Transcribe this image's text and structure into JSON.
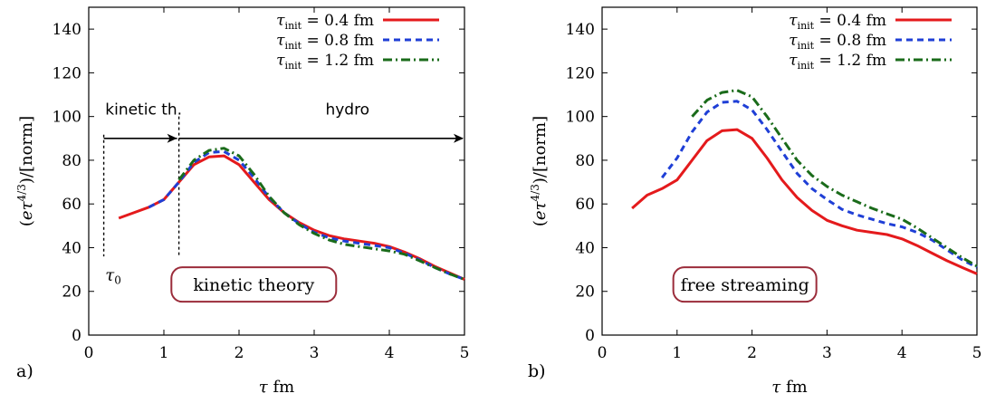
{
  "chart_data": [
    {
      "type": "line",
      "panel_label": "a)",
      "xlabel": "τ fm",
      "ylabel": "(eτ^{4/3})/[norm]",
      "xlim": [
        0,
        5
      ],
      "ylim": [
        0,
        150
      ],
      "x_ticks": [
        "0",
        "1",
        "2",
        "3",
        "4",
        "5"
      ],
      "y_ticks": [
        "0",
        "20",
        "40",
        "60",
        "80",
        "100",
        "120",
        "140"
      ],
      "legend_position": "top-right",
      "series": [
        {
          "name": "τinit = 0.4 fm",
          "color": "#e41a1c",
          "dash": "solid",
          "x": [
            0.4,
            0.6,
            0.8,
            1.0,
            1.2,
            1.4,
            1.6,
            1.8,
            2.0,
            2.2,
            2.4,
            2.6,
            2.8,
            3.0,
            3.2,
            3.4,
            3.6,
            3.8,
            4.0,
            4.2,
            4.4,
            4.6,
            4.8,
            5.0
          ],
          "y": [
            53.5,
            56,
            58.5,
            62,
            70,
            78,
            81.5,
            82,
            78,
            70,
            62,
            56,
            51.5,
            48,
            45.5,
            44,
            43,
            42,
            40.5,
            38,
            35,
            31.5,
            28.5,
            25.5
          ]
        },
        {
          "name": "τinit = 0.8 fm",
          "color": "#1f3fd6",
          "dash": "dash",
          "x": [
            0.8,
            1.0,
            1.2,
            1.4,
            1.6,
            1.8,
            2.0,
            2.2,
            2.4,
            2.6,
            2.8,
            3.0,
            3.2,
            3.4,
            3.6,
            3.8,
            4.0,
            4.2,
            4.4,
            4.6,
            4.8,
            5.0
          ],
          "y": [
            58.5,
            62,
            70,
            79,
            83.5,
            84,
            80,
            72,
            63,
            56,
            51,
            47,
            44.5,
            43,
            42,
            41,
            40,
            37.5,
            34.5,
            31,
            28,
            25.5
          ]
        },
        {
          "name": "τinit = 1.2 fm",
          "color": "#1a6b1a",
          "dash": "dashdot",
          "x": [
            1.2,
            1.4,
            1.6,
            1.8,
            2.0,
            2.2,
            2.4,
            2.6,
            2.8,
            3.0,
            3.2,
            3.4,
            3.6,
            3.8,
            4.0,
            4.2,
            4.4,
            4.6,
            4.8,
            5.0
          ],
          "y": [
            71,
            80,
            84.5,
            85.5,
            82,
            73.5,
            63.5,
            56,
            50.5,
            46.5,
            43.5,
            41.5,
            40.5,
            39.5,
            38.5,
            37,
            34,
            31,
            28,
            25.5
          ]
        }
      ],
      "annotations": {
        "kinetic_label": "kinetic th.",
        "hydro_label": "hydro",
        "tau0_label": "τ0",
        "tau_init_label": "τinit = 1.2 fm",
        "box_label": "kinetic theory",
        "tau0_x": 0.2,
        "tau_init_x": 1.2,
        "arrow_y": 90
      }
    },
    {
      "type": "line",
      "panel_label": "b)",
      "xlabel": "τ fm",
      "ylabel": "(eτ^{4/3})/[norm]",
      "xlim": [
        0,
        5
      ],
      "ylim": [
        0,
        150
      ],
      "x_ticks": [
        "0",
        "1",
        "2",
        "3",
        "4",
        "5"
      ],
      "y_ticks": [
        "0",
        "20",
        "40",
        "60",
        "80",
        "100",
        "120",
        "140"
      ],
      "legend_position": "top-right",
      "series": [
        {
          "name": "τinit = 0.4 fm",
          "color": "#e41a1c",
          "dash": "solid",
          "x": [
            0.4,
            0.6,
            0.8,
            1.0,
            1.2,
            1.4,
            1.6,
            1.8,
            2.0,
            2.2,
            2.4,
            2.6,
            2.8,
            3.0,
            3.2,
            3.4,
            3.6,
            3.8,
            4.0,
            4.2,
            4.4,
            4.6,
            4.8,
            5.0
          ],
          "y": [
            58,
            64,
            67,
            71,
            80,
            89,
            93.5,
            94,
            90,
            81,
            71,
            63,
            57,
            52.5,
            50,
            48,
            47,
            46,
            44,
            41,
            37.5,
            34,
            31,
            28
          ]
        },
        {
          "name": "τinit = 0.8 fm",
          "color": "#1f3fd6",
          "dash": "dash",
          "x": [
            0.8,
            1.0,
            1.2,
            1.4,
            1.6,
            1.8,
            2.0,
            2.2,
            2.4,
            2.6,
            2.8,
            3.0,
            3.2,
            3.4,
            3.6,
            3.8,
            4.0,
            4.2,
            4.4,
            4.6,
            4.8,
            5.0
          ],
          "y": [
            72,
            81,
            93,
            102,
            106.5,
            107,
            103,
            94,
            84,
            74,
            67,
            62,
            57.5,
            55,
            53,
            51,
            49.5,
            47,
            43.5,
            39,
            34.5,
            31
          ]
        },
        {
          "name": "τinit = 1.2 fm",
          "color": "#1a6b1a",
          "dash": "dashdot",
          "x": [
            1.2,
            1.4,
            1.6,
            1.8,
            2.0,
            2.2,
            2.4,
            2.6,
            2.8,
            3.0,
            3.2,
            3.4,
            3.6,
            3.8,
            4.0,
            4.2,
            4.4,
            4.6,
            4.8,
            5.0
          ],
          "y": [
            100,
            107.5,
            111,
            112,
            109,
            100,
            90,
            80,
            73,
            68,
            64,
            61,
            58,
            55.5,
            53,
            49,
            44.5,
            40,
            35.5,
            31.5
          ]
        }
      ],
      "annotations": {
        "box_label": "free streaming"
      }
    }
  ]
}
